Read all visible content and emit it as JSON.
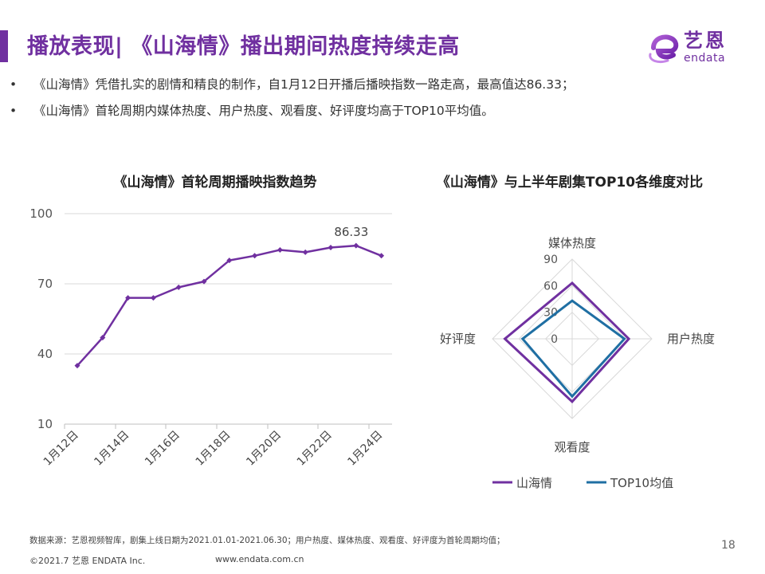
{
  "header": {
    "title": "播放表现| 《山海情》播出期间热度持续走高",
    "accent_color": "#7030A0"
  },
  "logo": {
    "cn": "艺恩",
    "en": "endata"
  },
  "bullets": [
    "《山海情》凭借扎实的剧情和精良的制作，自1月12日开播后播映指数一路走高，最高值达86.33；",
    "《山海情》首轮周期内媒体热度、用户热度、观看度、好评度均高于TOP10平均值。"
  ],
  "bullet_symbol": "•",
  "chart_data": [
    {
      "type": "line",
      "title": "《山海情》首轮周期播映指数趋势",
      "x": [
        "1月12日",
        "1月13日",
        "1月14日",
        "1月15日",
        "1月16日",
        "1月17日",
        "1月18日",
        "1月19日",
        "1月20日",
        "1月21日",
        "1月22日",
        "1月23日",
        "1月24日"
      ],
      "x_tick_labels": [
        "1月12日",
        "1月14日",
        "1月16日",
        "1月18日",
        "1月20日",
        "1月22日",
        "1月24日"
      ],
      "series": [
        {
          "values": [
            35,
            47,
            64,
            64,
            68.5,
            71,
            80,
            82,
            84.5,
            83.5,
            85.5,
            86.33,
            82
          ],
          "color": "#7030A0"
        }
      ],
      "ylim": [
        10,
        100
      ],
      "yticks": [
        10,
        40,
        70,
        100
      ],
      "annotation": {
        "label": "86.33",
        "x": "1月23日",
        "y": 86.33
      },
      "grid": true
    },
    {
      "type": "radar",
      "title": "《山海情》与上半年剧集TOP10各维度对比",
      "axes": [
        "媒体热度",
        "用户热度",
        "观看度",
        "好评度"
      ],
      "rticks": [
        0,
        30,
        60,
        90
      ],
      "rlim": [
        0,
        90
      ],
      "series": [
        {
          "name": "山海情",
          "values": [
            63,
            64,
            71,
            76
          ],
          "color": "#7030A0"
        },
        {
          "name": "TOP10均值",
          "values": [
            43,
            59,
            65,
            56
          ],
          "color": "#1F6FA3"
        }
      ],
      "legend_position": "bottom"
    }
  ],
  "footer": {
    "source": "数据来源：艺恩视频智库，剧集上线日期为2021.01.01-2021.06.30；用户热度、媒体热度、观看度、好评度为首轮周期均值；",
    "copyright": "©2021.7 艺恩 ENDATA Inc.",
    "url": "www.endata.com.cn",
    "page": "18"
  }
}
